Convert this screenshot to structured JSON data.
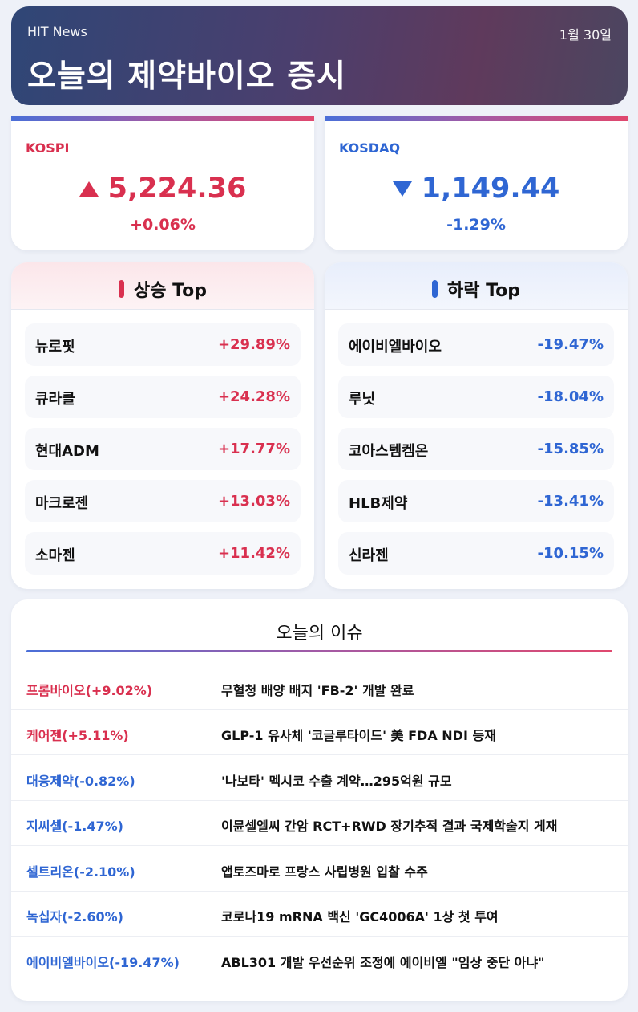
{
  "header": {
    "brand": "HIT News",
    "date": "1월 30일",
    "title": "오늘의 제약바이오 증시"
  },
  "indices": {
    "kospi": {
      "name": "KOSPI",
      "direction": "up",
      "value": "5,224.36",
      "change": "+0.06%"
    },
    "kosdaq": {
      "name": "KOSDAQ",
      "direction": "down",
      "value": "1,149.44",
      "change": "-1.29%"
    }
  },
  "gainers": {
    "title": "상승 Top",
    "items": [
      {
        "name": "뉴로핏",
        "pct": "+29.89%"
      },
      {
        "name": "큐라클",
        "pct": "+24.28%"
      },
      {
        "name": "현대ADM",
        "pct": "+17.77%"
      },
      {
        "name": "마크로젠",
        "pct": "+13.03%"
      },
      {
        "name": "소마젠",
        "pct": "+11.42%"
      }
    ]
  },
  "losers": {
    "title": "하락 Top",
    "items": [
      {
        "name": "에이비엘바이오",
        "pct": "-19.47%"
      },
      {
        "name": "루닛",
        "pct": "-18.04%"
      },
      {
        "name": "코아스템켐온",
        "pct": "-15.85%"
      },
      {
        "name": "HLB제약",
        "pct": "-13.41%"
      },
      {
        "name": "신라젠",
        "pct": "-10.15%"
      }
    ]
  },
  "issues": {
    "title": "오늘의 이슈",
    "items": [
      {
        "company": "프롬바이오(+9.02%)",
        "direction": "up",
        "headline": "무혈청 배양 배지 'FB-2' 개발 완료"
      },
      {
        "company": "케어젠(+5.11%)",
        "direction": "up",
        "headline": "GLP-1 유사체 '코글루타이드' 美 FDA NDI 등재"
      },
      {
        "company": "대웅제약(-0.82%)",
        "direction": "down",
        "headline": "'나보타' 멕시코 수출 계약…295억원 규모"
      },
      {
        "company": "지씨셀(-1.47%)",
        "direction": "down",
        "headline": "이뮨셀엘씨 간암 RCT+RWD 장기추적 결과 국제학술지 게재"
      },
      {
        "company": "셀트리온(-2.10%)",
        "direction": "down",
        "headline": "앱토즈마로 프랑스 사립병원 입찰 수주"
      },
      {
        "company": "녹십자(-2.60%)",
        "direction": "down",
        "headline": "코로나19 mRNA 백신 'GC4006A' 1상 첫 투여"
      },
      {
        "company": "에이비엘바이오(-19.47%)",
        "direction": "down",
        "headline": "ABL301 개발 우선순위 조정에 에이비엘 \"임상 중단 아냐\""
      }
    ]
  },
  "colors": {
    "up": "#d9304f",
    "down": "#2f66d3"
  }
}
